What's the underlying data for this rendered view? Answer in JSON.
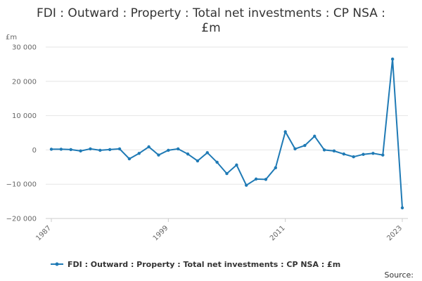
{
  "chart_data": {
    "type": "line",
    "title_line1": "FDI : Outward : Property : Total net investments : CP NSA :",
    "title_line2": "£m",
    "unit_label": "£m",
    "ylim": [
      -20000,
      30000
    ],
    "y_ticks": [
      30000,
      20000,
      10000,
      0,
      -10000,
      -20000
    ],
    "y_tick_labels": [
      "30 000",
      "20 000",
      "10 000",
      "0",
      "−10 000",
      "−20 000"
    ],
    "x_ticks": [
      1987,
      1999,
      2011,
      2023
    ],
    "x_tick_labels": [
      "1987",
      "1999",
      "2011",
      "2023"
    ],
    "grid": true,
    "legend_position": "bottom",
    "series": [
      {
        "name": "FDI : Outward : Property : Total net investments : CP NSA : £m",
        "color": "#1f7ab5",
        "x": [
          1987,
          1988,
          1989,
          1990,
          1991,
          1992,
          1993,
          1994,
          1995,
          1996,
          1997,
          1998,
          1999,
          2000,
          2001,
          2002,
          2003,
          2004,
          2005,
          2006,
          2007,
          2008,
          2009,
          2010,
          2011,
          2012,
          2013,
          2014,
          2015,
          2016,
          2017,
          2018,
          2019,
          2020,
          2021,
          2022,
          2023
        ],
        "values": [
          200,
          200,
          100,
          -300,
          300,
          -100,
          100,
          300,
          -2600,
          -1000,
          900,
          -1500,
          -100,
          300,
          -1200,
          -3200,
          -800,
          -3600,
          -6900,
          -4400,
          -10300,
          -8500,
          -8600,
          -5200,
          5300,
          300,
          1300,
          4000,
          0,
          -300,
          -1200,
          -2000,
          -1300,
          -1000,
          -1500,
          26500,
          -16900
        ]
      }
    ],
    "source_label": "Source:"
  }
}
